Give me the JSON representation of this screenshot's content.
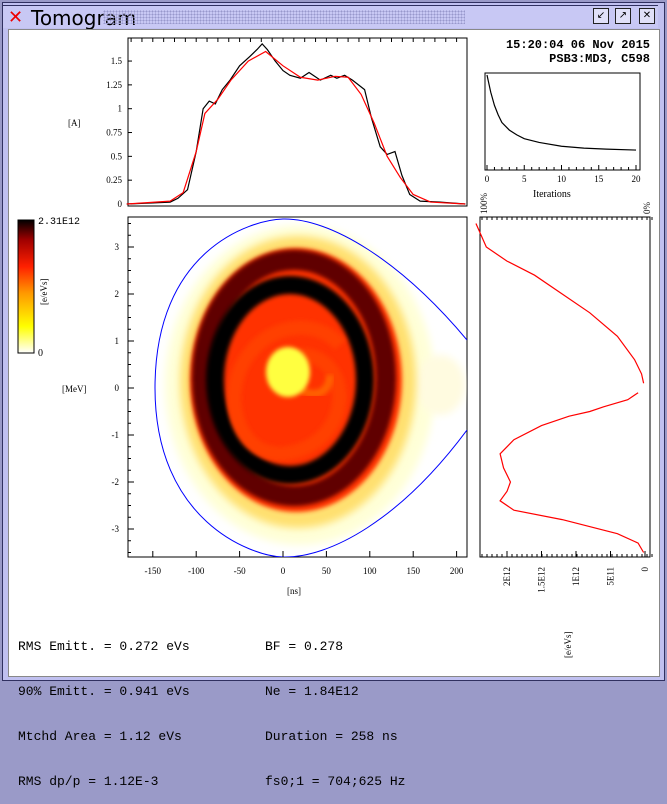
{
  "window": {
    "title": "Tomogram",
    "close_icon": "red-x-icon",
    "buttons": [
      "minimize-icon",
      "maximize-icon",
      "close-icon"
    ]
  },
  "header": {
    "timestamp": "15:20:04 06 Nov 2015",
    "source": "PSB3:MD3, C598"
  },
  "colorbar": {
    "max_label": "2.31E12",
    "min_label": "0",
    "unit": "[e/eVs]",
    "colors": [
      "#ffffff",
      "#ffff00",
      "#ff9900",
      "#ff2000",
      "#a00000",
      "#000000"
    ]
  },
  "chart_data": [
    {
      "type": "line",
      "name_hint": "current profile",
      "ylabel": "[A]",
      "yticks": [
        "0",
        "0.25",
        "0.5",
        "0.75",
        "1",
        "1.25",
        "1.5"
      ],
      "ylim": [
        0,
        1.75
      ],
      "xlim": [
        -180,
        210
      ],
      "series": [
        {
          "color": "#000000",
          "x": [
            -180,
            -130,
            -121,
            -110,
            -100,
            -92,
            -85,
            -78,
            -70,
            -61,
            -50,
            -38,
            -30,
            -24,
            -18,
            -9,
            0,
            8,
            20,
            30,
            43,
            55,
            62,
            71,
            80,
            94,
            102,
            112,
            120,
            129,
            137,
            146,
            158,
            181,
            210
          ],
          "y": [
            0,
            0.02,
            0.06,
            0.15,
            0.55,
            1.0,
            1.08,
            1.05,
            1.2,
            1.3,
            1.45,
            1.55,
            1.62,
            1.68,
            1.62,
            1.5,
            1.4,
            1.35,
            1.32,
            1.38,
            1.3,
            1.35,
            1.32,
            1.35,
            1.3,
            1.2,
            0.9,
            0.6,
            0.52,
            0.55,
            0.3,
            0.1,
            0.03,
            0.02,
            0
          ]
        },
        {
          "color": "#ff0000",
          "x": [
            -180,
            -130,
            -115,
            -100,
            -90,
            -75,
            -60,
            -40,
            -20,
            0,
            20,
            40,
            60,
            75,
            90,
            105,
            120,
            135,
            150,
            170,
            210
          ],
          "y": [
            0,
            0.03,
            0.12,
            0.55,
            0.95,
            1.1,
            1.3,
            1.5,
            1.6,
            1.45,
            1.33,
            1.3,
            1.34,
            1.33,
            1.15,
            0.85,
            0.5,
            0.28,
            0.1,
            0.02,
            0
          ]
        }
      ]
    },
    {
      "type": "line",
      "xlabel": "Iterations",
      "xticks": [
        "0",
        "5",
        "10",
        "15",
        "20"
      ],
      "xlim": [
        0,
        20
      ],
      "ylim": [
        0,
        1
      ],
      "series": [
        {
          "color": "#000000",
          "x": [
            0,
            0.5,
            1,
            1.5,
            2,
            3,
            4,
            5,
            7,
            10,
            13,
            16,
            20
          ],
          "y": [
            1,
            0.82,
            0.68,
            0.58,
            0.5,
            0.42,
            0.37,
            0.33,
            0.29,
            0.25,
            0.23,
            0.22,
            0.21
          ]
        }
      ]
    },
    {
      "type": "heatmap",
      "xlabel": "[ns]",
      "ylabel": "[MeV]",
      "xticks": [
        "-150",
        "-100",
        "-50",
        "0",
        "50",
        "100",
        "150",
        "200"
      ],
      "yticks": [
        "-3",
        "-2",
        "-1",
        "0",
        "1",
        "2",
        "3"
      ],
      "xlim": [
        -180,
        210
      ],
      "ylim": [
        -3.6,
        3.6
      ],
      "separatrix_color": "#0000ff"
    },
    {
      "type": "line",
      "xlabel": "[e/eVs]",
      "xticks": [
        "2E12",
        "1.5E12",
        "1E12",
        "5E11",
        "0"
      ],
      "top_labels": [
        "100%",
        "0%"
      ],
      "xlim": [
        2500000000000.0,
        0
      ],
      "ylim": [
        -3.6,
        3.6
      ],
      "series": [
        {
          "color": "#ff0000",
          "x": [
            2450000000000.0,
            2300000000000.0,
            2000000000000.0,
            1600000000000.0,
            1200000000000.0,
            800000000000.0,
            400000000000.0,
            150000000000.0,
            50000000000.0,
            20000000000.0
          ],
          "y": [
            3.5,
            3.0,
            2.7,
            2.4,
            2.0,
            1.6,
            1.1,
            0.6,
            0.3,
            0.1
          ],
          "x2": [
            100000000000.0,
            250000000000.0,
            600000000000.0,
            800000000000.0,
            1100000000000.0,
            1500000000000.0,
            1900000000000.0,
            2100000000000.0,
            2050000000000.0,
            1950000000000.0,
            2000000000000.0,
            2100000000000.0,
            1900000000000.0,
            1200000000000.0,
            400000000000.0,
            100000000000.0,
            20000000000.0
          ],
          "y2": [
            -0.1,
            -0.25,
            -0.4,
            -0.5,
            -0.6,
            -0.8,
            -1.1,
            -1.4,
            -1.7,
            -2.0,
            -2.2,
            -2.4,
            -2.6,
            -2.8,
            -3.1,
            -3.3,
            -3.5
          ]
        }
      ]
    }
  ],
  "stats": {
    "left": [
      "RMS Emitt. = 0.272 eVs",
      "90% Emitt. = 0.941 eVs",
      "Mtchd Area = 1.12 eVs",
      "RMS dp/p = 1.12E-3"
    ],
    "right": [
      "BF = 0.278",
      "Ne = 1.84E12",
      "Duration = 258 ns",
      "fs0;1 = 704;625 Hz"
    ]
  }
}
